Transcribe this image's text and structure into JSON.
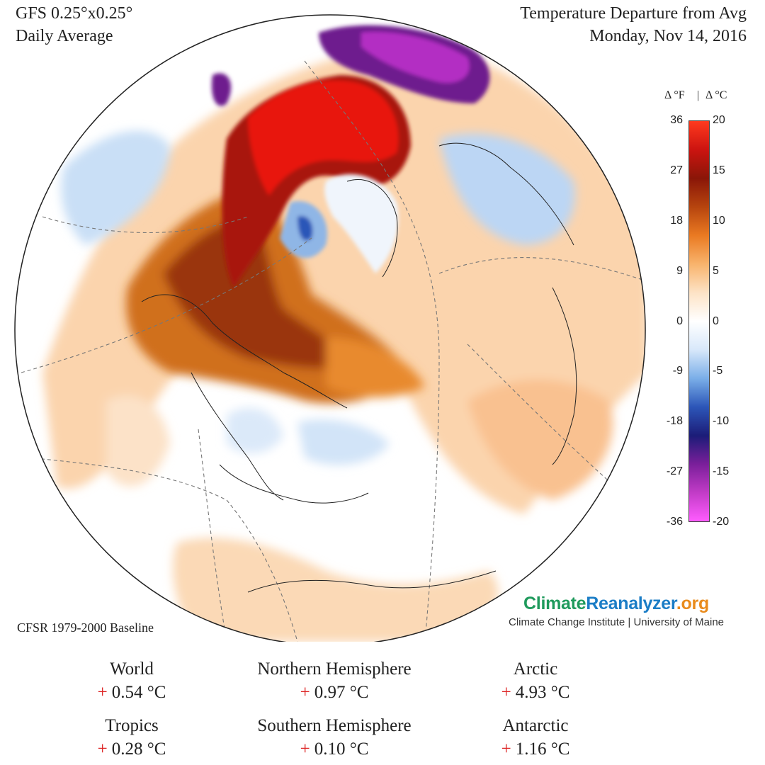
{
  "header": {
    "left_line1": "GFS 0.25°x0.25°",
    "left_line2": "Daily Average",
    "right_line1": "Temperature Departure from Avg",
    "right_line2": "Monday, Nov 14, 2016"
  },
  "legend": {
    "header_f": "Δ °F",
    "header_sep": "|",
    "header_c": "Δ °C",
    "fahrenheit_ticks": [
      "36",
      "27",
      "18",
      "9",
      "0",
      "-9",
      "-18",
      "-27",
      "-36"
    ],
    "celsius_ticks": [
      "20",
      "15",
      "10",
      "5",
      "0",
      "-5",
      "-10",
      "-15",
      "-20"
    ],
    "colors": [
      "#ff5cff",
      "#c23cc7",
      "#7a1f9a",
      "#1c1c78",
      "#2c56b8",
      "#7aaee8",
      "#d8e8fa",
      "#ffffff",
      "#fde3c6",
      "#f8b36c",
      "#ea7a22",
      "#b6440e",
      "#8a1608",
      "#cc1410",
      "#ff3a1e"
    ]
  },
  "baseline": "CFSR 1979-2000 Baseline",
  "brand": {
    "part1": "Climate",
    "part2": "Reanalyzer",
    "part3": ".org",
    "subtitle": "Climate Change Institute | University of Maine"
  },
  "stats": [
    {
      "label": "World",
      "sign": "+",
      "value": "0.54 °C"
    },
    {
      "label": "Northern Hemisphere",
      "sign": "+",
      "value": "0.97 °C"
    },
    {
      "label": "Arctic",
      "sign": "+",
      "value": "4.93 °C"
    },
    {
      "label": "Tropics",
      "sign": "+",
      "value": "0.28 °C"
    },
    {
      "label": "Southern Hemisphere",
      "sign": "+",
      "value": "0.10 °C"
    },
    {
      "label": "Antarctic",
      "sign": "+",
      "value": "1.16 °C"
    }
  ]
}
